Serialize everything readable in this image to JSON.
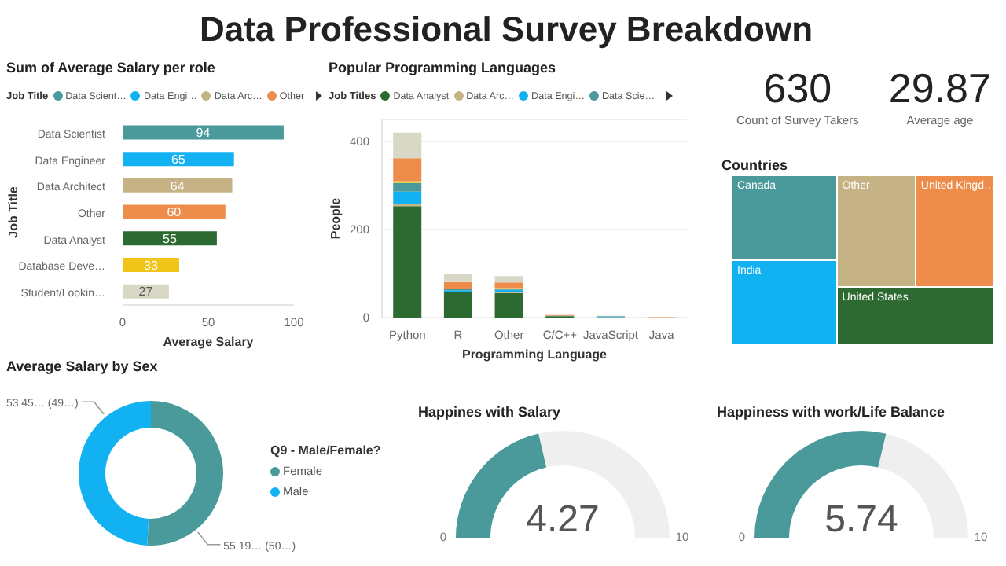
{
  "chart_data": [
    {
      "type": "other",
      "title": "Data Professional Survey Breakdown"
    },
    {
      "type": "bar",
      "title": "Sum of Average Salary per role",
      "orientation": "horizontal",
      "stacked": true,
      "categories": [
        "Data Scientist",
        "Data Engineer",
        "Data Architect",
        "Other",
        "Data Analyst",
        "Database Deve…",
        "Student/Lookin…"
      ],
      "legend_title": "Job Title",
      "legend": "top",
      "xlabel": "Average Salary",
      "ylabel": "Job Title",
      "xlim": [
        0,
        100
      ],
      "xticks": [
        0,
        50,
        100
      ],
      "data_labels": true,
      "series": [
        {
          "name": "Data Scient…",
          "color": "#4a9a9b",
          "values": [
            94,
            null,
            null,
            null,
            null,
            null,
            null
          ]
        },
        {
          "name": "Data Engi…",
          "color": "#12b2f2",
          "values": [
            null,
            65,
            null,
            null,
            null,
            null,
            null
          ]
        },
        {
          "name": "Data Arc…",
          "color": "#c5b386",
          "values": [
            null,
            null,
            64,
            null,
            null,
            null,
            null
          ]
        },
        {
          "name": "Other",
          "color": "#ee8d4b",
          "values": [
            null,
            null,
            null,
            60,
            null,
            null,
            null
          ]
        },
        {
          "color": "#2d6a32",
          "values": [
            null,
            null,
            null,
            null,
            55,
            null,
            null
          ]
        },
        {
          "color": "#f0c419",
          "values": [
            null,
            null,
            null,
            null,
            null,
            33,
            null
          ]
        },
        {
          "color": "#d9d8c6",
          "values": [
            null,
            null,
            null,
            null,
            null,
            null,
            27
          ]
        }
      ]
    },
    {
      "type": "bar",
      "title": "Popular Programming Languages",
      "stacked": true,
      "categories": [
        "Python",
        "R",
        "Other",
        "C/C++",
        "JavaScript",
        "Java"
      ],
      "legend_title": "Job Titles",
      "legend": "top",
      "xlabel": "Programming Language",
      "ylabel": "People",
      "ylim": [
        0,
        450
      ],
      "yticks": [
        0,
        200,
        400
      ],
      "grid": "y",
      "series": [
        {
          "name": "Data Analyst",
          "color": "#2d6a32",
          "values": [
            253,
            58,
            56,
            3,
            0,
            0
          ]
        },
        {
          "name": "Data Arc…",
          "color": "#c5b386",
          "values": [
            4,
            1,
            2,
            0,
            0,
            0
          ]
        },
        {
          "name": "Data Engi…",
          "color": "#12b2f2",
          "values": [
            29,
            3,
            5,
            0,
            1,
            0
          ]
        },
        {
          "name": "Data Scie…",
          "color": "#4a9a9b",
          "values": [
            20,
            3,
            3,
            1,
            2,
            0
          ]
        },
        {
          "color": "#f0c419",
          "values": [
            4,
            1,
            1,
            0,
            0,
            0
          ]
        },
        {
          "color": "#ee8d4b",
          "values": [
            52,
            15,
            13,
            2,
            0,
            1
          ]
        },
        {
          "color": "#d9d8c6",
          "values": [
            58,
            19,
            14,
            0,
            1,
            0
          ]
        }
      ]
    },
    {
      "type": "other",
      "annotations": [
        "630",
        "Count of Survey Takers",
        "29.87",
        "Average age"
      ]
    },
    {
      "type": "other",
      "title": "Countries",
      "categories": [
        "Canada",
        "India",
        "Other",
        "United Kingd…",
        "United States"
      ],
      "colors": [
        "#4a9a9b",
        "#12b2f2",
        "#c5b386",
        "#ee8d4b",
        "#2d6a32"
      ]
    },
    {
      "type": "donut",
      "title": "Average Salary by Sex",
      "categories": [
        "Female",
        "Male"
      ],
      "values": [
        55.19,
        53.45
      ],
      "colors": [
        "#4a9a9b",
        "#12b2f2"
      ],
      "value_labels": [
        "55.19… (50…)",
        "53.45… (49…)"
      ],
      "legend_title": "Q9 - Male/Female?",
      "legend": "right"
    },
    {
      "type": "other",
      "title": "Happines with Salary",
      "values": [
        4.27
      ],
      "value_labels": [
        "4.27"
      ],
      "annotations": [
        "0",
        "10"
      ],
      "colors": [
        "#4a9a9b"
      ]
    },
    {
      "type": "other",
      "title": "Happiness with work/Life Balance",
      "values": [
        5.74
      ],
      "value_labels": [
        "5.74"
      ],
      "annotations": [
        "0",
        "10"
      ],
      "colors": [
        "#4a9a9b"
      ]
    }
  ]
}
